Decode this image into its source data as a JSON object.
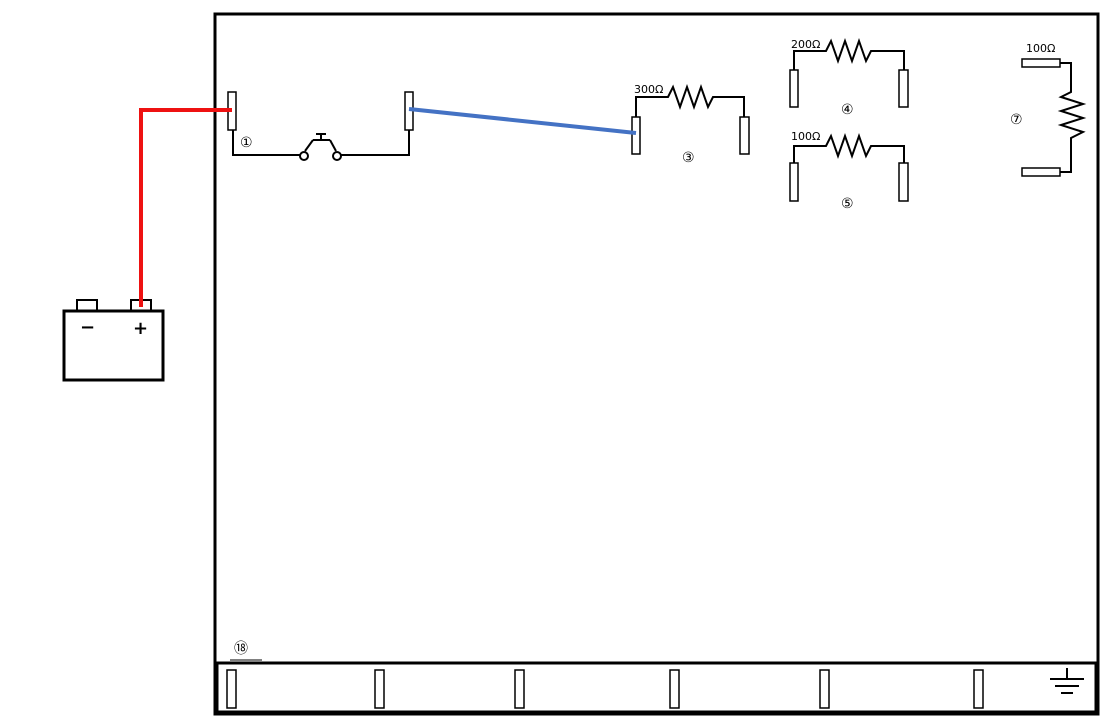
{
  "components": {
    "switch": {
      "id_label": "①"
    },
    "resistor3": {
      "id_label": "③",
      "value_label": "300Ω"
    },
    "resistor4": {
      "id_label": "④",
      "value_label": "200Ω"
    },
    "resistor5": {
      "id_label": "⑤",
      "value_label": "100Ω"
    },
    "resistor7": {
      "id_label": "⑦",
      "value_label": "100Ω"
    },
    "bus": {
      "id_label": "⑱"
    },
    "battery": {
      "minus_label": "−",
      "plus_label": "+"
    }
  },
  "wires": [
    {
      "name": "battery-plus-to-switch-wire",
      "color": "#ee1111"
    },
    {
      "name": "switch-to-resistor3-wire",
      "color": "#4472c4"
    }
  ],
  "colors": {
    "line": "#000000",
    "board_bg": "#ffffff",
    "terminal_fill": "#ffffff"
  }
}
